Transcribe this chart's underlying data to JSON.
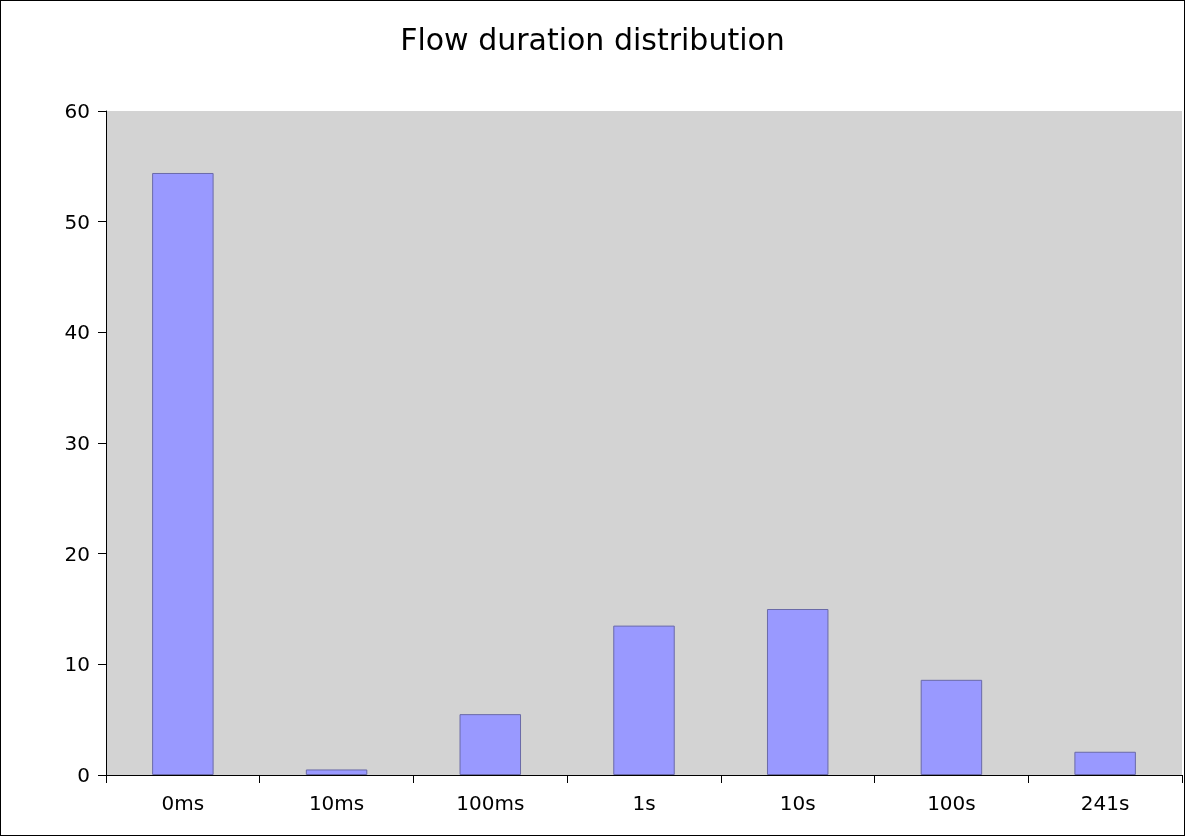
{
  "chart_data": {
    "type": "bar",
    "title": "Flow duration distribution",
    "categories": [
      "0ms",
      "10ms",
      "100ms",
      "1s",
      "10s",
      "100s",
      "241s"
    ],
    "values": [
      54.4,
      0.5,
      5.5,
      13.5,
      15.0,
      8.6,
      2.1
    ],
    "color": "#9999ff",
    "ylim": [
      0,
      60
    ],
    "yticks": [
      0,
      10,
      20,
      30,
      40,
      50,
      60
    ],
    "grid": false
  }
}
